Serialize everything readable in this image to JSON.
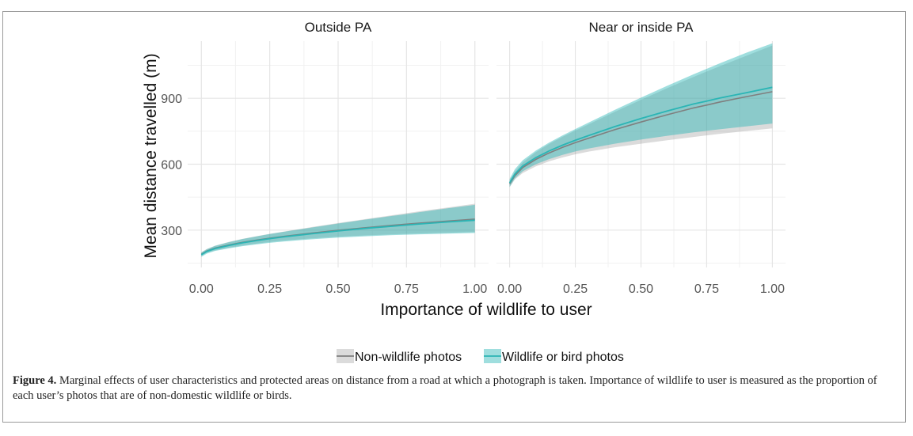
{
  "chart_data": {
    "type": "line",
    "panels": [
      {
        "title": "Outside PA",
        "x": [
          0.0,
          0.02,
          0.05,
          0.1,
          0.15,
          0.2,
          0.25,
          0.3,
          0.4,
          0.5,
          0.6,
          0.7,
          0.75,
          0.8,
          0.9,
          1.0
        ],
        "series": [
          {
            "name": "Non-wildlife photos",
            "color": "#7f7f7f",
            "y": [
              190,
              205,
              218,
              232,
              244,
              254,
              263,
              271,
              286,
              299,
              311,
              322,
              327,
              332,
              341,
              350
            ],
            "lower": [
              182,
              197,
              208,
              220,
              230,
              238,
              246,
              252,
              262,
              270,
              276,
              281,
              283,
              285,
              288,
              291
            ],
            "upper": [
              199,
              214,
              229,
              246,
              260,
              272,
              283,
              293,
              313,
              332,
              350,
              368,
              377,
              386,
              403,
              420
            ]
          },
          {
            "name": "Wildlife or bird photos",
            "color": "#2bb5b5",
            "y": [
              188,
              203,
              216,
              230,
              242,
              252,
              261,
              269,
              283,
              296,
              308,
              318,
              323,
              328,
              337,
              345
            ],
            "lower": [
              178,
              193,
              205,
              217,
              227,
              235,
              242,
              248,
              258,
              266,
              272,
              277,
              279,
              281,
              284,
              287
            ],
            "upper": [
              198,
              213,
              228,
              245,
              259,
              271,
              282,
              292,
              311,
              330,
              348,
              365,
              373,
              382,
              399,
              415
            ]
          }
        ]
      },
      {
        "title": "Near or inside PA",
        "x": [
          0.0,
          0.02,
          0.05,
          0.1,
          0.15,
          0.2,
          0.25,
          0.3,
          0.4,
          0.5,
          0.6,
          0.7,
          0.75,
          0.8,
          0.9,
          1.0
        ],
        "series": [
          {
            "name": "Non-wildlife photos",
            "color": "#7f7f7f",
            "y": [
              510,
              548,
              585,
              622,
              651,
              676,
              698,
              718,
              757,
              792,
              825,
              856,
              869,
              883,
              907,
              930
            ],
            "lower": [
              495,
              530,
              560,
              590,
              613,
              630,
              645,
              657,
              677,
              693,
              709,
              724,
              731,
              738,
              751,
              763
            ],
            "upper": [
              525,
              566,
              608,
              655,
              692,
              724,
              753,
              781,
              838,
              893,
              946,
              997,
              1022,
              1046,
              1093,
              1140
            ]
          },
          {
            "name": "Wildlife or bird photos",
            "color": "#2bb5b5",
            "y": [
              515,
              555,
              592,
              630,
              660,
              686,
              709,
              730,
              771,
              808,
              842,
              874,
              887,
              901,
              925,
              950
            ],
            "lower": [
              497,
              535,
              568,
              600,
              623,
              642,
              658,
              671,
              693,
              712,
              729,
              745,
              752,
              759,
              772,
              785
            ],
            "upper": [
              533,
              577,
              618,
              662,
              698,
              730,
              760,
              789,
              847,
              903,
              957,
              1009,
              1034,
              1059,
              1107,
              1150
            ]
          }
        ]
      }
    ],
    "xlabel": "Importance of wildlife to user",
    "ylabel": "Mean distance travelled (m)",
    "x_ticks": [
      "0.00",
      "0.25",
      "0.50",
      "0.75",
      "1.00"
    ],
    "y_ticks": [
      "300",
      "600",
      "900"
    ],
    "xlim": [
      -0.05,
      1.05
    ],
    "ylim": [
      130,
      1160
    ],
    "grid": true,
    "legend": {
      "position": "bottom",
      "items": [
        "Non-wildlife photos",
        "Wildlife or bird photos"
      ]
    }
  },
  "caption": {
    "label": "Figure 4.",
    "text": " Marginal effects of user characteristics and protected areas on distance from a road at which a photograph is taken. Importance of wildlife to user is measured as the proportion of each user’s photos that are of non-domestic wildlife or birds."
  }
}
